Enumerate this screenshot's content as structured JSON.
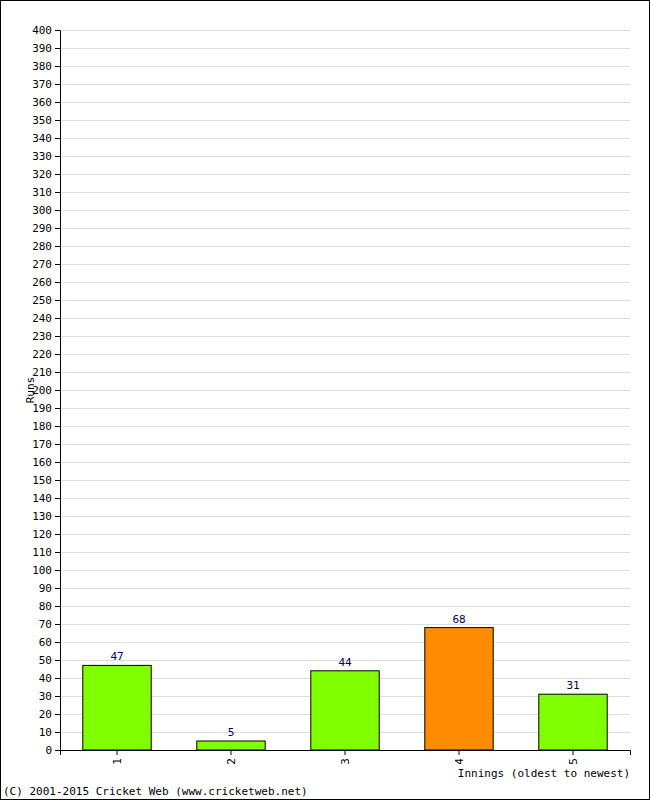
{
  "chart_data": {
    "type": "bar",
    "categories": [
      "1",
      "2",
      "3",
      "4",
      "5"
    ],
    "values": [
      47,
      5,
      44,
      68,
      31
    ],
    "colors": [
      "#80ff00",
      "#80ff00",
      "#80ff00",
      "#ff8c00",
      "#80ff00"
    ],
    "x_label": "Innings (oldest to newest)",
    "y_label": "Runs",
    "annotations": [
      "(C) 2001-2015 Cricket Web (www.cricketweb.net)"
    ],
    "ylim": [
      0,
      400
    ],
    "yticks": [
      0,
      10,
      20,
      30,
      40,
      50,
      60,
      70,
      80,
      90,
      100,
      110,
      120,
      130,
      140,
      150,
      160,
      170,
      180,
      190,
      200,
      210,
      220,
      230,
      240,
      250,
      260,
      270,
      280,
      290,
      300,
      310,
      320,
      330,
      340,
      350,
      360,
      370,
      380,
      390,
      400
    ],
    "grid": true,
    "data_labels": true
  }
}
